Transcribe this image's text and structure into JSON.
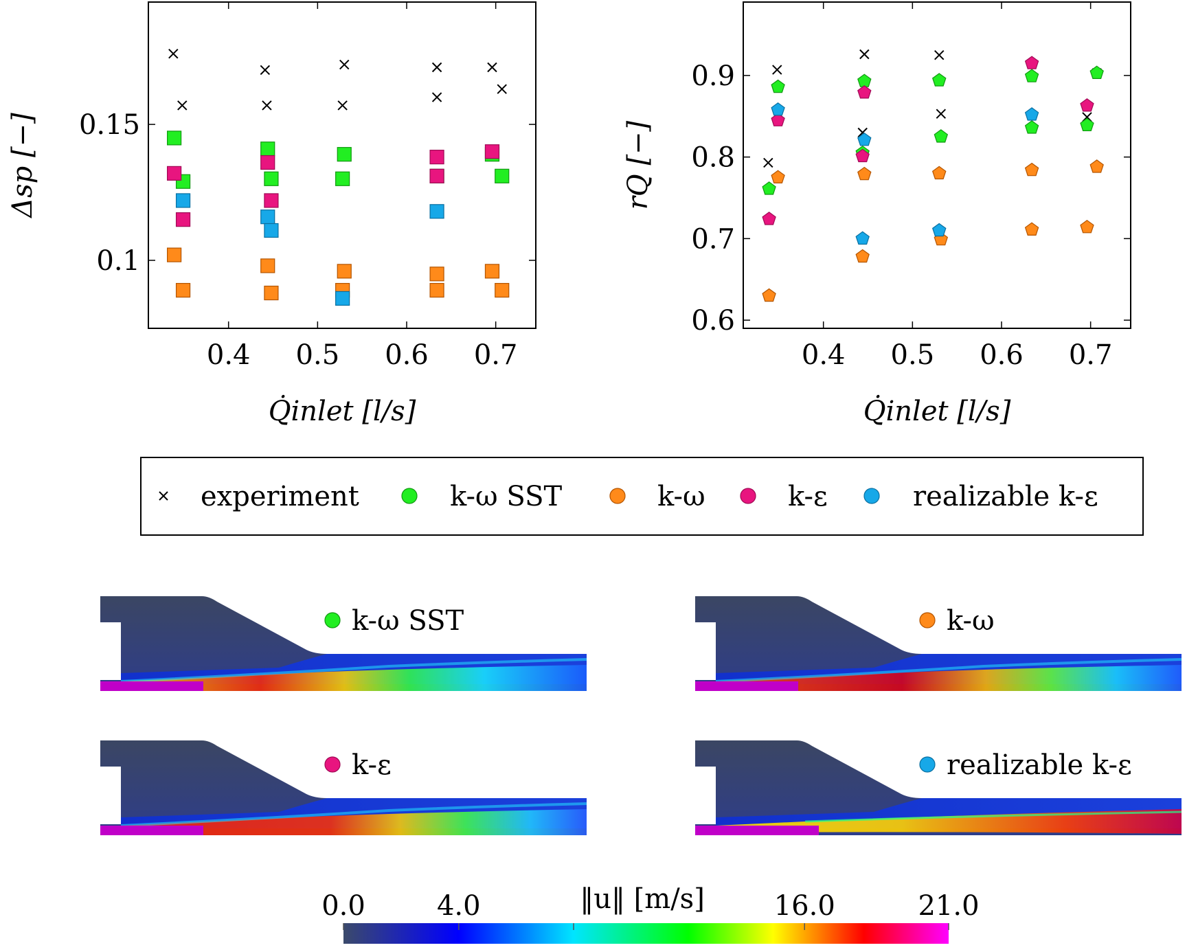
{
  "legend": {
    "entries": [
      {
        "key": "experiment",
        "label": "experiment",
        "color": "#000000",
        "marker": "cross"
      },
      {
        "key": "kw_sst",
        "label": "k-ω SST",
        "color": "#22ee22",
        "marker": "circle"
      },
      {
        "key": "kw",
        "label": "k-ω",
        "color": "#ff8a1a",
        "marker": "circle"
      },
      {
        "key": "ke",
        "label": "k-ε",
        "color": "#e8157f",
        "marker": "circle"
      },
      {
        "key": "rke",
        "label": "realizable k-ε",
        "color": "#17a8e8",
        "marker": "circle"
      }
    ]
  },
  "chart_data": [
    {
      "type": "scatter",
      "id": "pressure_drop",
      "ylabel": "Δsp [−]",
      "xlabel": "Q̇inlet [l/s]",
      "xlim": [
        0.31,
        0.745
      ],
      "ylim": [
        0.075,
        0.195
      ],
      "xticks": [
        "0.4",
        "0.5",
        "0.6",
        "0.7"
      ],
      "yticks": [
        "0.1",
        "0.15"
      ],
      "marker": "square",
      "series": [
        {
          "key": "experiment",
          "points": [
            [
              0.338,
              0.176
            ],
            [
              0.348,
              0.157
            ],
            [
              0.441,
              0.17
            ],
            [
              0.443,
              0.157
            ],
            [
              0.53,
              0.172
            ],
            [
              0.528,
              0.157
            ],
            [
              0.634,
              0.171
            ],
            [
              0.634,
              0.16
            ],
            [
              0.696,
              0.171
            ],
            [
              0.707,
              0.163
            ]
          ]
        },
        {
          "key": "kw_sst",
          "points": [
            [
              0.339,
              0.145
            ],
            [
              0.349,
              0.129
            ],
            [
              0.444,
              0.141
            ],
            [
              0.448,
              0.13
            ],
            [
              0.53,
              0.139
            ],
            [
              0.528,
              0.13
            ],
            [
              0.634,
              0.131
            ],
            [
              0.696,
              0.139
            ],
            [
              0.707,
              0.131
            ]
          ]
        },
        {
          "key": "kw",
          "points": [
            [
              0.339,
              0.102
            ],
            [
              0.349,
              0.089
            ],
            [
              0.444,
              0.098
            ],
            [
              0.448,
              0.088
            ],
            [
              0.53,
              0.096
            ],
            [
              0.528,
              0.089
            ],
            [
              0.634,
              0.095
            ],
            [
              0.634,
              0.089
            ],
            [
              0.696,
              0.096
            ],
            [
              0.707,
              0.089
            ]
          ]
        },
        {
          "key": "ke",
          "points": [
            [
              0.339,
              0.132
            ],
            [
              0.349,
              0.115
            ],
            [
              0.444,
              0.136
            ],
            [
              0.448,
              0.122
            ],
            [
              0.634,
              0.138
            ],
            [
              0.634,
              0.131
            ],
            [
              0.696,
              0.14
            ]
          ]
        },
        {
          "key": "rke",
          "points": [
            [
              0.349,
              0.122
            ],
            [
              0.444,
              0.116
            ],
            [
              0.448,
              0.111
            ],
            [
              0.528,
              0.086
            ],
            [
              0.634,
              0.118
            ]
          ]
        }
      ]
    },
    {
      "type": "scatter",
      "id": "flow_ratio",
      "ylabel": "rQ [−]",
      "xlabel": "Q̇inlet [l/s]",
      "xlim": [
        0.31,
        0.745
      ],
      "ylim": [
        0.59,
        0.99
      ],
      "xticks": [
        "0.4",
        "0.5",
        "0.6",
        "0.7"
      ],
      "yticks": [
        "0.6",
        "0.7",
        "0.8",
        "0.9"
      ],
      "marker": "pentagon",
      "series": [
        {
          "key": "experiment",
          "points": [
            [
              0.338,
              0.793
            ],
            [
              0.348,
              0.907
            ],
            [
              0.444,
              0.83
            ],
            [
              0.446,
              0.926
            ],
            [
              0.53,
              0.925
            ],
            [
              0.532,
              0.853
            ],
            [
              0.696,
              0.849
            ],
            [
              0.707,
              0.903
            ]
          ]
        },
        {
          "key": "kw_sst",
          "points": [
            [
              0.339,
              0.761
            ],
            [
              0.349,
              0.886
            ],
            [
              0.444,
              0.805
            ],
            [
              0.446,
              0.893
            ],
            [
              0.53,
              0.894
            ],
            [
              0.532,
              0.825
            ],
            [
              0.634,
              0.899
            ],
            [
              0.634,
              0.836
            ],
            [
              0.696,
              0.839
            ],
            [
              0.707,
              0.903
            ]
          ]
        },
        {
          "key": "kw",
          "points": [
            [
              0.339,
              0.63
            ],
            [
              0.349,
              0.775
            ],
            [
              0.444,
              0.678
            ],
            [
              0.446,
              0.779
            ],
            [
              0.53,
              0.78
            ],
            [
              0.532,
              0.699
            ],
            [
              0.634,
              0.784
            ],
            [
              0.634,
              0.711
            ],
            [
              0.696,
              0.714
            ],
            [
              0.707,
              0.788
            ]
          ]
        },
        {
          "key": "ke",
          "points": [
            [
              0.339,
              0.724
            ],
            [
              0.349,
              0.845
            ],
            [
              0.444,
              0.801
            ],
            [
              0.446,
              0.879
            ],
            [
              0.634,
              0.915
            ],
            [
              0.696,
              0.863
            ]
          ]
        },
        {
          "key": "rke",
          "points": [
            [
              0.349,
              0.858
            ],
            [
              0.444,
              0.7
            ],
            [
              0.446,
              0.821
            ],
            [
              0.53,
              0.71
            ],
            [
              0.634,
              0.852
            ]
          ]
        }
      ]
    }
  ],
  "contours": [
    {
      "key": "kw_sst",
      "label": "k-ω SST",
      "variant": "sst"
    },
    {
      "key": "kw",
      "label": "k-ω",
      "variant": "kw"
    },
    {
      "key": "ke",
      "label": "k-ε",
      "variant": "ke"
    },
    {
      "key": "rke",
      "label": "realizable k-ε",
      "variant": "rke"
    }
  ],
  "colorbar": {
    "label": "‖u‖ [m/s]",
    "ticks": [
      "0.0",
      "4.0",
      "16.0",
      "21.0"
    ],
    "range": [
      0.0,
      21.0
    ],
    "colors": [
      "#3b4a6b",
      "#0000ff",
      "#00e5ff",
      "#00ff00",
      "#ffff00",
      "#ff0000",
      "#ff00ff"
    ]
  }
}
